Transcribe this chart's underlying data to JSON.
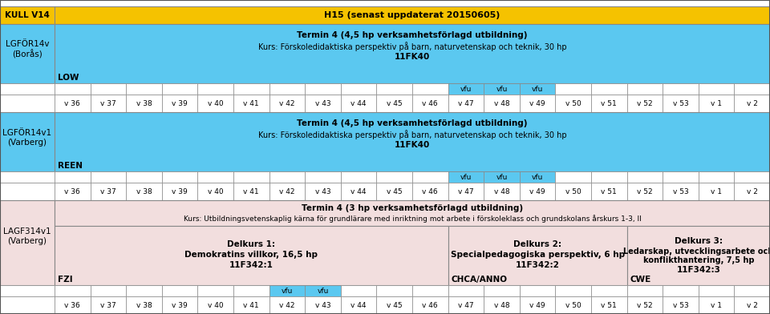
{
  "title_cell": "KULL V14",
  "header_text": "H15 (senast uppdaterat 20150605)",
  "weeks": [
    "v 36",
    "v 37",
    "v 38",
    "v 39",
    "v 40",
    "v 41",
    "v 42",
    "v 43",
    "v 44",
    "v 45",
    "v 46",
    "v 47",
    "v 48",
    "v 49",
    "v 50",
    "v 51",
    "v 52",
    "v 53",
    "v 1",
    "v 2"
  ],
  "row1_label": "LGFÖR14v\n(Borås)",
  "row1_sublabel": "LOW",
  "row1_text1": "Termin 4 (4,5 hp verksamhetsförlagd utbildning)",
  "row1_text2": "Kurs: Förskoledidaktiska perspektiv på barn, naturvetenskap och teknik, 30 hp",
  "row1_text3": "11FK40",
  "row1_vfu": [
    11,
    12,
    13
  ],
  "row2_label": "LGFÖR14v1\n(Varberg)",
  "row2_sublabel": "REEN",
  "row2_text1": "Termin 4 (4,5 hp verksamhetsförlagd utbildning)",
  "row2_text2": "Kurs: Förskoledidaktiska perspektiv på barn, naturvetenskap och teknik, 30 hp",
  "row2_text3": "11FK40",
  "row2_vfu": [
    11,
    12,
    13
  ],
  "row3_label": "LAGF314v1\n(Varberg)",
  "row3_sublabel": "FZI",
  "row3_header1": "Termin 4 (3 hp verksamhetsförlagd utbildning)",
  "row3_header2": "Kurs: Utbildningsvetenskaplig kärna för grundlärare med inriktning mot arbete i förskoleklass och grundskolans årskurs 1-3, II",
  "row3_delkurs1_title": "Delkurs 1:",
  "row3_delkurs1_text": "Demokratins villkor, 16,5 hp",
  "row3_delkurs1_code": "11F342:1",
  "row3_delkurs1_span": [
    0,
    10
  ],
  "row3_delkurs2_title": "Delkurs 2:",
  "row3_delkurs2_text": "Specialpedagogiska perspektiv, 6 hp",
  "row3_delkurs2_code": "11F342:2",
  "row3_delkurs2_sublabel": "CHCA/ANNO",
  "row3_delkurs2_span": [
    11,
    15
  ],
  "row3_delkurs3_title": "Delkurs 3:",
  "row3_delkurs3_line1": "Ledarskap, utvecklingsarbete och",
  "row3_delkurs3_line2": "konflikthantering, 7,5 hp",
  "row3_delkurs3_code": "11F342:3",
  "row3_delkurs3_sublabel": "CWE",
  "row3_delkurs3_span": [
    16,
    19
  ],
  "row3_vfu": [
    6,
    7
  ],
  "color_yellow": "#F5C200",
  "color_blue": "#5BC8F0",
  "color_pink": "#F2DEDE",
  "color_white": "#FFFFFF",
  "color_border": "#888888",
  "color_dark": "#222222"
}
